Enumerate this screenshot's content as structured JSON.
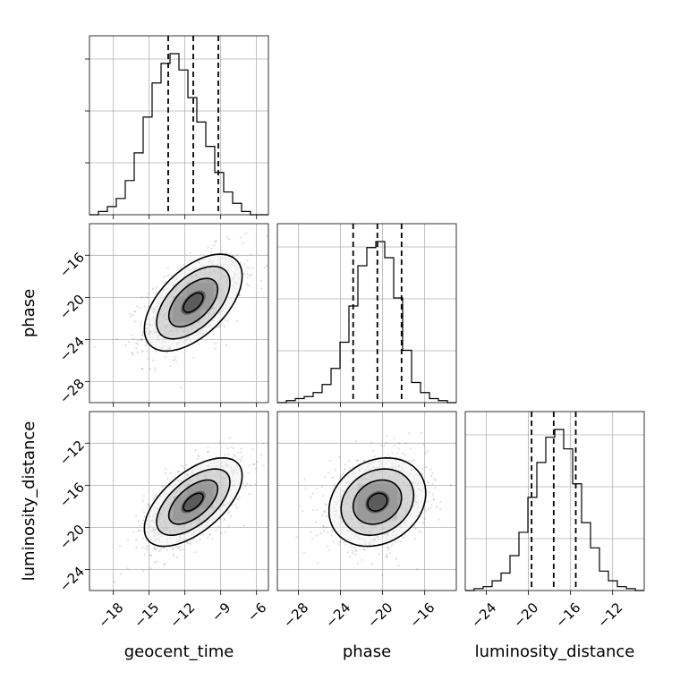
{
  "chart_data": {
    "type": "corner",
    "parameters": [
      {
        "name": "geocent_time",
        "label": "geocent_time",
        "mean": -11.3,
        "sd": 2.05,
        "quantiles": [
          -13.4,
          -11.3,
          -9.2
        ],
        "ticks": [
          -18,
          -15,
          -12,
          -9,
          -6
        ],
        "range": [
          -20,
          -5
        ],
        "hist": {
          "edges_start": -20,
          "bin_width": 0.75,
          "counts": [
            0,
            2,
            5,
            10,
            21,
            38,
            60,
            81,
            93,
            99,
            89,
            72,
            57,
            42,
            26,
            14,
            7,
            2,
            0,
            0
          ]
        }
      },
      {
        "name": "phase",
        "label": "phase",
        "mean": -20.5,
        "sd": 2.3,
        "quantiles": [
          -22.8,
          -20.5,
          -18.2
        ],
        "ticks": [
          -28,
          -24,
          -20,
          -16
        ],
        "range": [
          -30,
          -13
        ],
        "hist": {
          "edges_start": -30,
          "bin_width": 0.85,
          "counts": [
            0,
            1,
            2,
            3,
            5,
            9,
            17,
            30,
            48,
            68,
            77,
            80,
            72,
            52,
            26,
            10,
            5,
            2,
            1,
            0
          ]
        }
      },
      {
        "name": "luminosity_distance",
        "label": "luminosity_distance",
        "mean": -17.6,
        "sd": 2.1,
        "quantiles": [
          -19.7,
          -17.6,
          -15.5
        ],
        "ticks": [
          -24,
          -20,
          -16,
          -12
        ],
        "range": [
          -26,
          -9
        ],
        "hist": {
          "edges_start": -26,
          "bin_width": 0.85,
          "counts": [
            0,
            1,
            2,
            5,
            9,
            18,
            30,
            48,
            66,
            79,
            83,
            73,
            55,
            35,
            22,
            10,
            5,
            2,
            1,
            0
          ]
        }
      }
    ],
    "correlations": {
      "phase|geocent_time": 0.55,
      "luminosity_distance|geocent_time": 0.6,
      "luminosity_distance|phase": 0.2
    },
    "ylabels": [
      "phase",
      "luminosity_distance"
    ],
    "xlabels": [
      "geocent_time",
      "phase",
      "luminosity_distance"
    ],
    "grid": true
  }
}
